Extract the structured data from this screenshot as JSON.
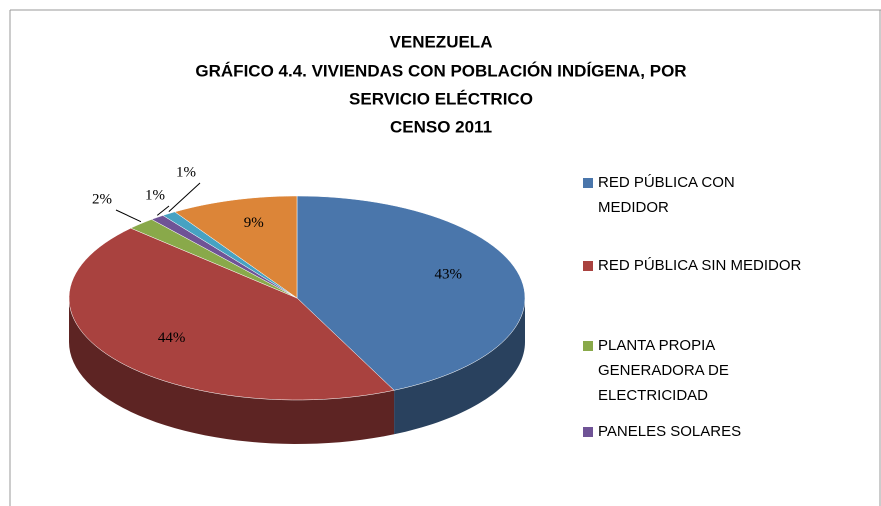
{
  "chart_data": {
    "type": "pie3d",
    "title": [
      "VENEZUELA",
      "GRÁFICO 4.4. VIVIENDAS CON POBLACIÓN INDÍGENA,  POR",
      "SERVICIO ELÉCTRICO",
      "CENSO 2011"
    ],
    "categories": [
      "RED PÚBLICA CON MEDIDOR",
      "RED PÚBLICA SIN MEDIDOR",
      "PLANTA PROPIA GENERADORA DE ELECTRICIDAD",
      "PANELES SOLARES",
      null,
      null
    ],
    "values": [
      43,
      44,
      2,
      1,
      1,
      9
    ],
    "value_labels": [
      "43%",
      "44%",
      "2%",
      "1%",
      "1%",
      "9%"
    ],
    "colors": [
      "#4a76ab",
      "#a9423f",
      "#89a94a",
      "#6f5396",
      "#47a2c2",
      "#dc8538"
    ],
    "legend": "right"
  }
}
